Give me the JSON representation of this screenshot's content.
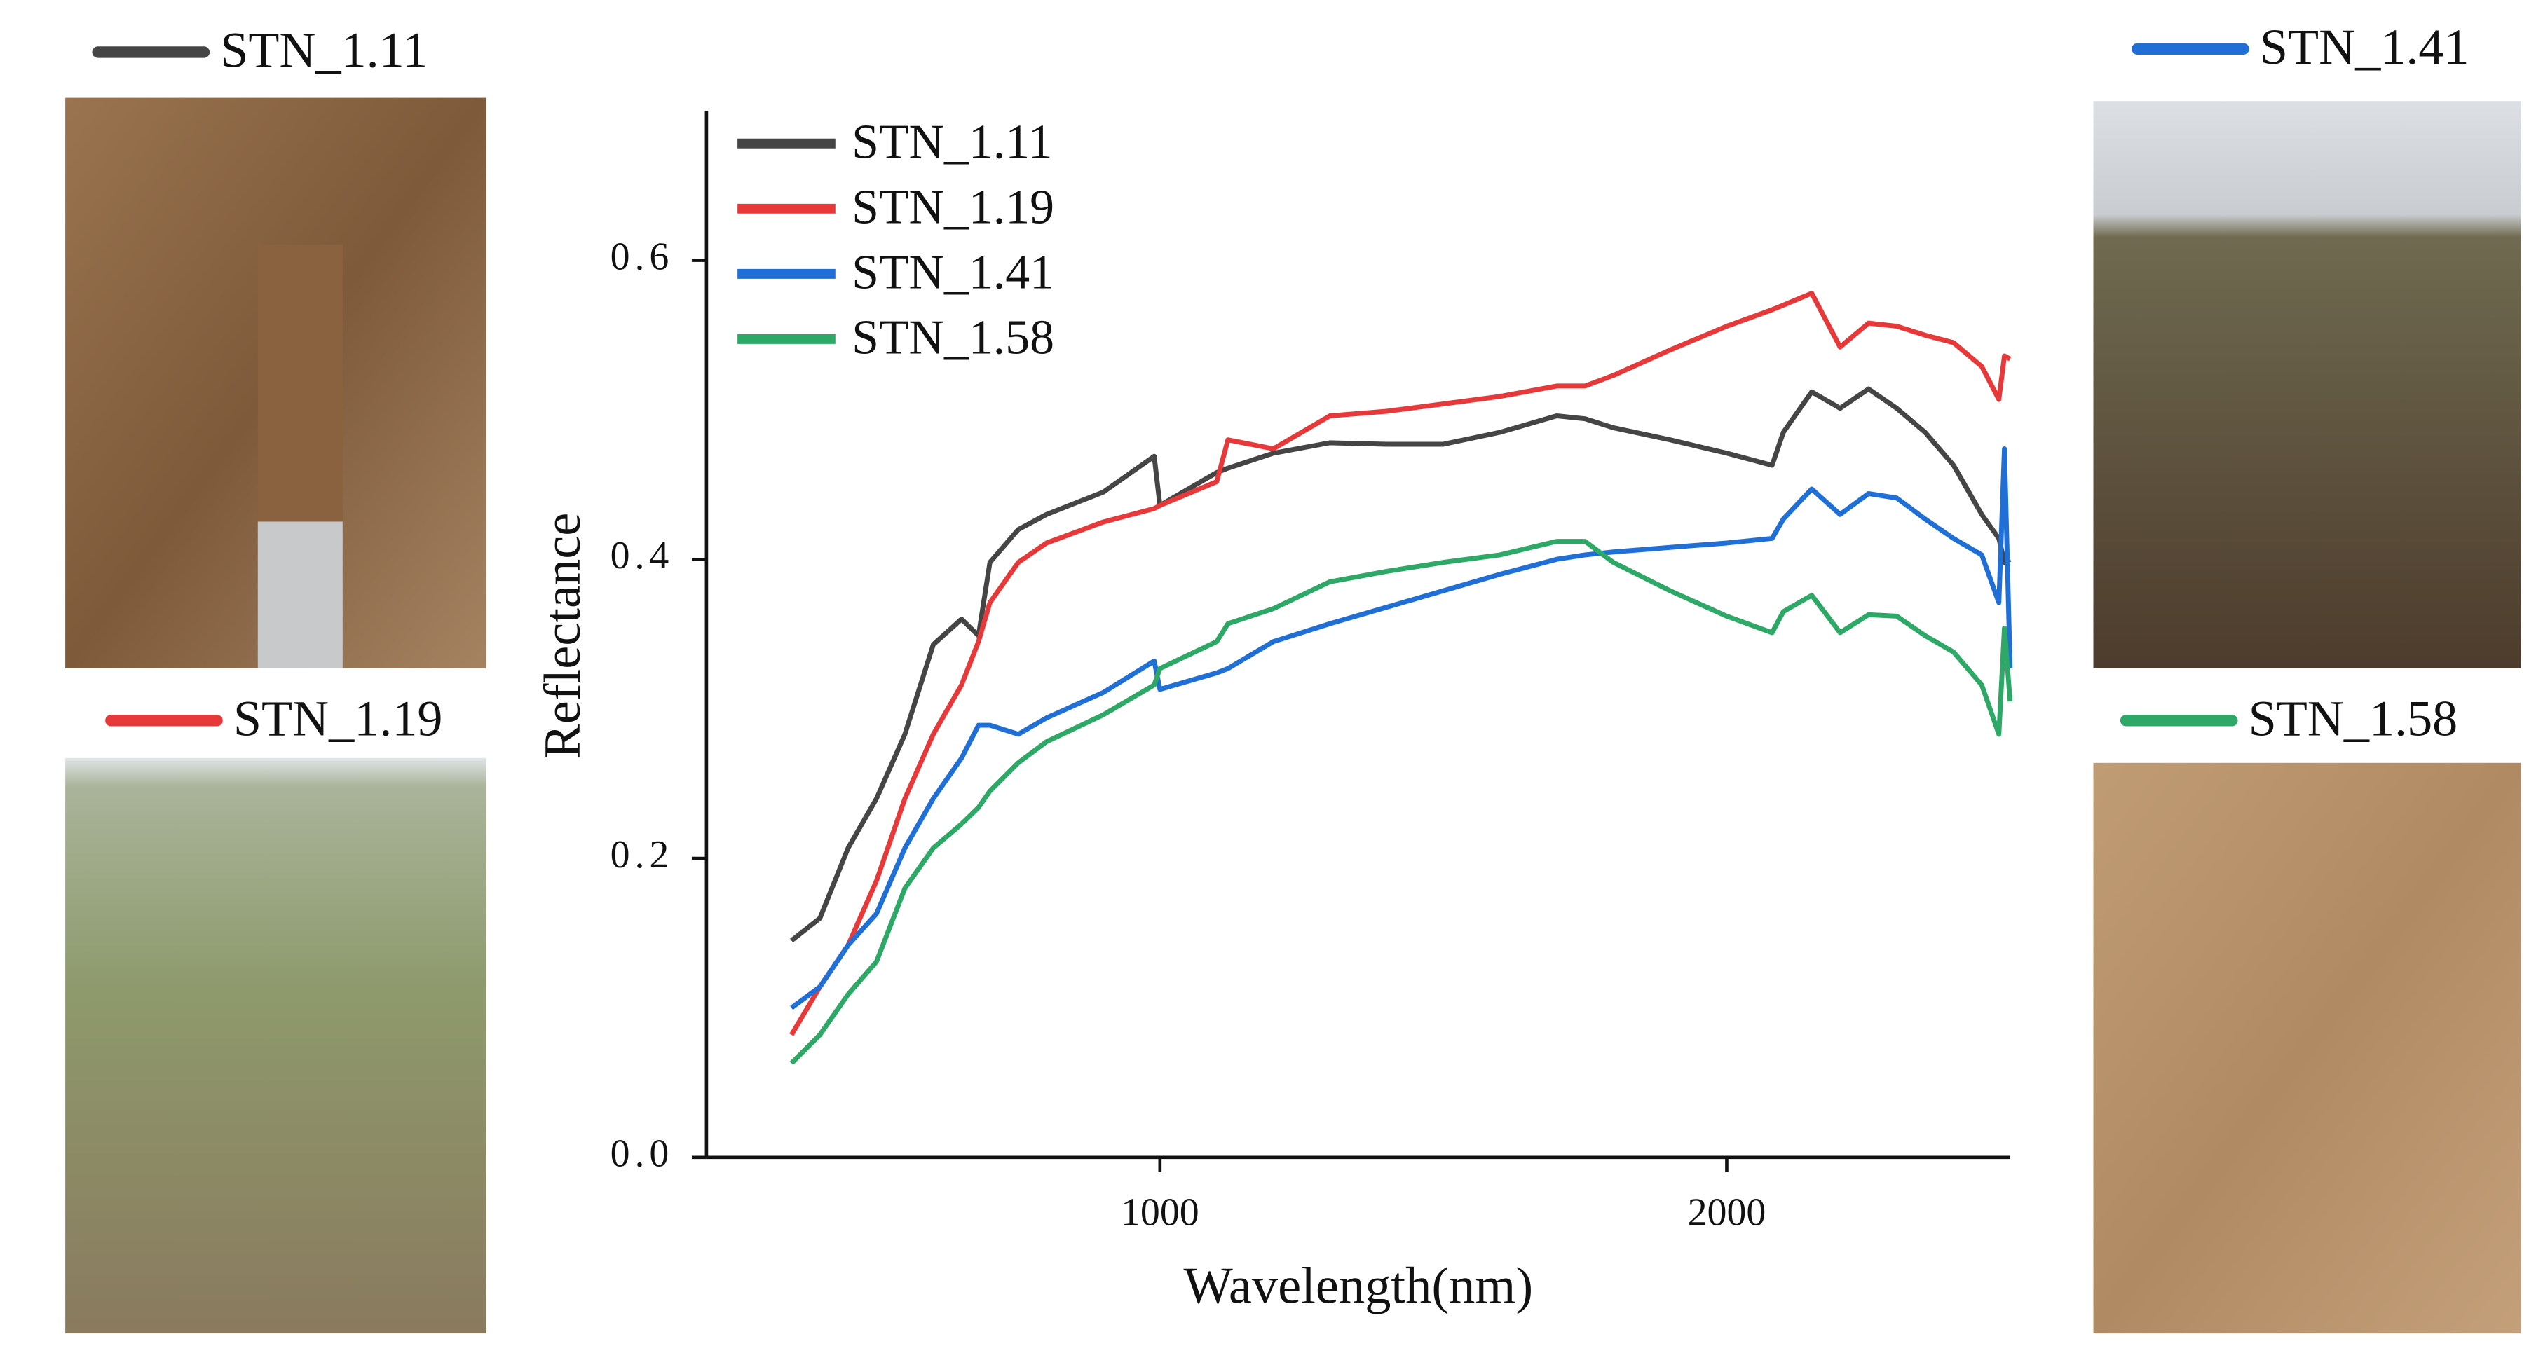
{
  "chart_data": {
    "type": "line",
    "x_label": "Wavelength(nm)",
    "y_label": "Reflectance",
    "x": [
      350,
      400,
      450,
      500,
      550,
      600,
      650,
      680,
      700,
      750,
      800,
      900,
      990,
      1000,
      1100,
      1120,
      1200,
      1300,
      1400,
      1500,
      1600,
      1700,
      1750,
      1800,
      1900,
      2000,
      2080,
      2100,
      2150,
      2200,
      2250,
      2300,
      2350,
      2400,
      2450,
      2480,
      2490,
      2500
    ],
    "series": [
      {
        "name": "STN_1.11",
        "color": "#454545",
        "values": [
          0.145,
          0.16,
          0.207,
          0.24,
          0.283,
          0.343,
          0.36,
          0.349,
          0.398,
          0.42,
          0.43,
          0.445,
          0.469,
          0.436,
          0.458,
          0.461,
          0.471,
          0.478,
          0.477,
          0.477,
          0.485,
          0.496,
          0.494,
          0.488,
          0.48,
          0.471,
          0.463,
          0.485,
          0.512,
          0.501,
          0.514,
          0.501,
          0.485,
          0.463,
          0.43,
          0.414,
          0.398,
          0.4
        ]
      },
      {
        "name": "STN_1.19",
        "color": "#e8393a",
        "values": [
          0.082,
          0.114,
          0.142,
          0.185,
          0.24,
          0.283,
          0.316,
          0.345,
          0.371,
          0.398,
          0.411,
          0.425,
          0.434,
          0.436,
          0.452,
          0.48,
          0.474,
          0.496,
          0.499,
          0.504,
          0.509,
          0.516,
          0.516,
          0.523,
          0.54,
          0.556,
          0.567,
          0.57,
          0.578,
          0.542,
          0.558,
          0.556,
          0.55,
          0.545,
          0.529,
          0.507,
          0.536,
          0.534
        ]
      },
      {
        "name": "STN_1.41",
        "color": "#1f6fd6",
        "values": [
          0.1,
          0.114,
          0.142,
          0.163,
          0.207,
          0.24,
          0.267,
          0.289,
          0.289,
          0.283,
          0.294,
          0.311,
          0.332,
          0.313,
          0.324,
          0.327,
          0.345,
          0.357,
          0.368,
          0.379,
          0.39,
          0.4,
          0.403,
          0.405,
          0.408,
          0.411,
          0.414,
          0.427,
          0.447,
          0.43,
          0.444,
          0.441,
          0.427,
          0.414,
          0.403,
          0.371,
          0.474,
          0.327
        ]
      },
      {
        "name": "STN_1.58",
        "color": "#2ea866",
        "values": [
          0.063,
          0.082,
          0.109,
          0.131,
          0.18,
          0.207,
          0.223,
          0.234,
          0.245,
          0.264,
          0.278,
          0.296,
          0.316,
          0.327,
          0.345,
          0.357,
          0.367,
          0.385,
          0.392,
          0.398,
          0.403,
          0.412,
          0.412,
          0.398,
          0.379,
          0.362,
          0.351,
          0.365,
          0.376,
          0.351,
          0.363,
          0.362,
          0.349,
          0.338,
          0.316,
          0.283,
          0.354,
          0.305
        ]
      }
    ],
    "xlim": [
      200,
      2500
    ],
    "xticks": [
      1000,
      2000
    ],
    "ylim": [
      0,
      0.7
    ],
    "yticks": [
      {
        "value": 0,
        "label": "0.0"
      },
      {
        "value": 0.2,
        "label": "0.2"
      },
      {
        "value": 0.4,
        "label": "0.4"
      },
      {
        "value": 0.6,
        "label": "0.6"
      }
    ],
    "legend": "upper left"
  }
}
